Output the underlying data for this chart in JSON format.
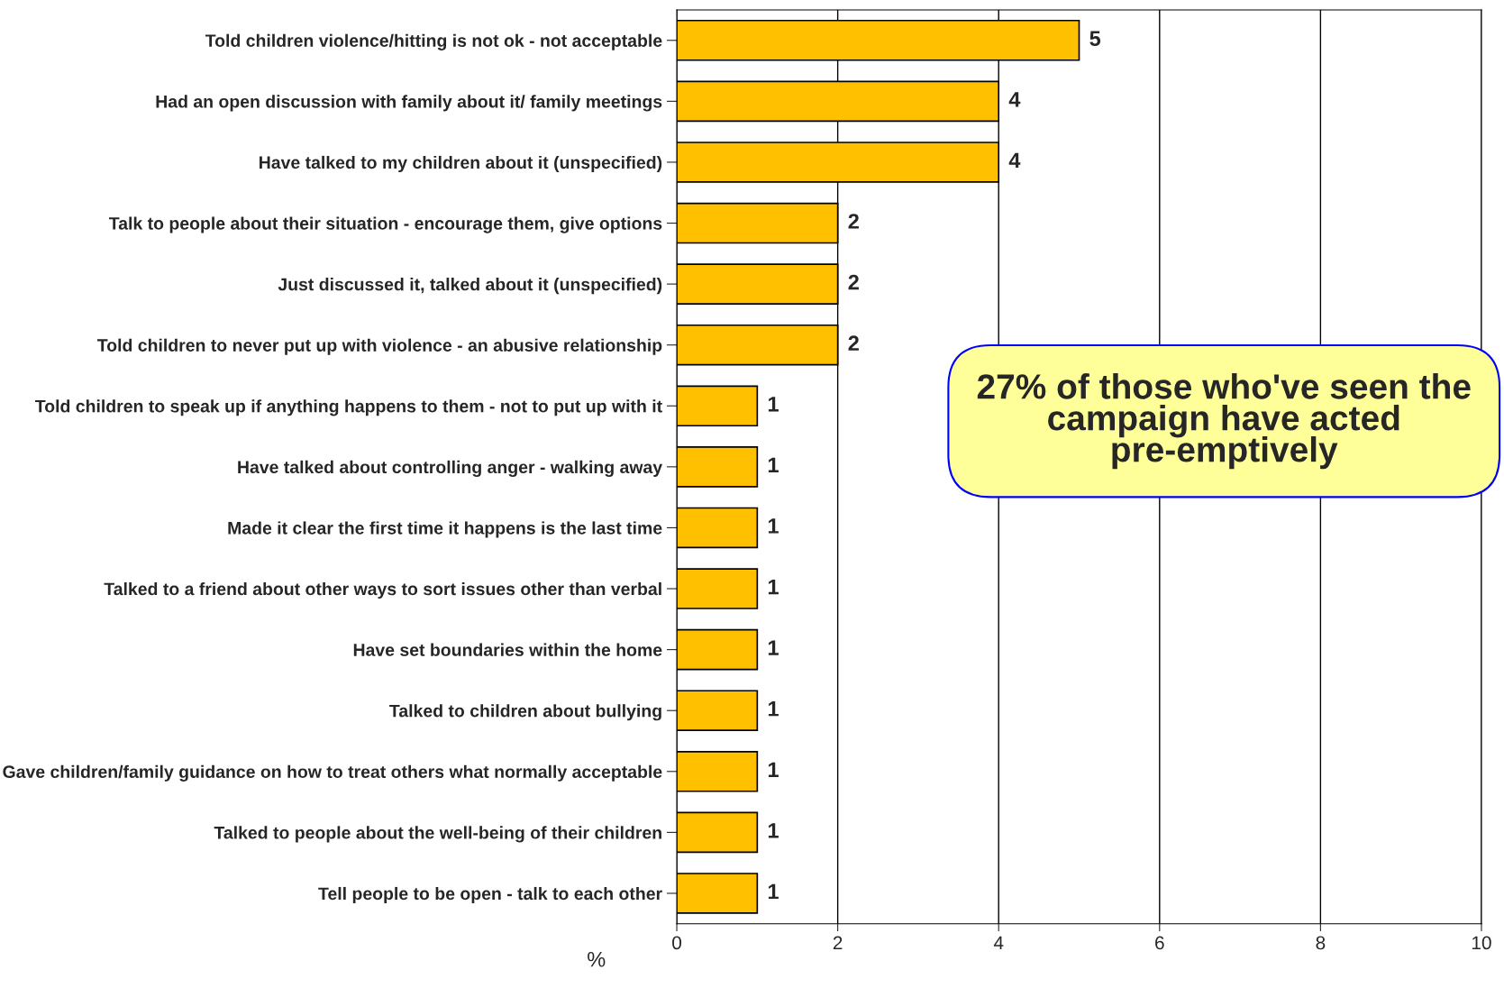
{
  "chart_data": {
    "type": "bar",
    "orientation": "horizontal",
    "categories": [
      "Told children violence/hitting is not ok - not acceptable",
      "Had an open discussion with family about it/ family meetings",
      "Have talked to my children about it (unspecified)",
      "Talk to people about their situation - encourage them, give options",
      "Just discussed it, talked about it (unspecified)",
      "Told children to never put up with violence - an abusive relationship",
      "Told children to speak up if anything happens to them - not to put up with it",
      "Have talked about controlling anger - walking away",
      "Made it clear the first time it happens is the last time",
      "Talked to a friend about other ways to sort issues other than verbal",
      "Have set boundaries within the home",
      "Talked to children about bullying",
      "Gave children/family guidance on how to treat others what normally acceptable",
      "Talked to people about the well-being of their children",
      "Tell people to be open - talk to each other"
    ],
    "values": [
      5,
      4,
      4,
      2,
      2,
      2,
      1,
      1,
      1,
      1,
      1,
      1,
      1,
      1,
      1
    ],
    "color": "#ffc000",
    "xlabel": "%",
    "xlim": [
      0,
      10
    ],
    "xticks": [
      0,
      2,
      4,
      6,
      8,
      10
    ],
    "grid": "x",
    "data_labels": true,
    "annotations": [
      "27% of those who've seen the campaign have acted pre-emptively"
    ]
  }
}
